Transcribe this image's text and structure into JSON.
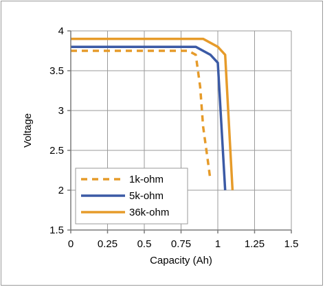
{
  "chart_data": {
    "type": "line",
    "xlabel": "Capacity (Ah)",
    "ylabel": "Voltage",
    "xlim": [
      0,
      1.5
    ],
    "ylim": [
      1.5,
      4
    ],
    "xticks": [
      0,
      0.25,
      0.5,
      0.75,
      1,
      1.25,
      1.5
    ],
    "xtick_labels": [
      "0",
      "0.25",
      "0.5",
      "0.75",
      "1",
      "1.25",
      "1.5"
    ],
    "yticks": [
      1.5,
      2,
      2.5,
      3,
      3.5,
      4
    ],
    "ytick_labels": [
      "1.5",
      "2",
      "2.5",
      "3",
      "3.5",
      "4"
    ],
    "grid": true,
    "legend_position": "bottom-left",
    "series": [
      {
        "name": "1k-ohm",
        "color": "#e69b2a",
        "style": "dashed",
        "points": [
          [
            0,
            3.75
          ],
          [
            0.8,
            3.75
          ],
          [
            0.85,
            3.7
          ],
          [
            0.88,
            3.3
          ],
          [
            0.9,
            2.8
          ],
          [
            0.93,
            2.4
          ],
          [
            0.95,
            2.12
          ]
        ]
      },
      {
        "name": "5k-ohm",
        "color": "#3b5aa5",
        "style": "solid",
        "points": [
          [
            0,
            3.8
          ],
          [
            0.85,
            3.8
          ],
          [
            0.95,
            3.7
          ],
          [
            1.0,
            3.6
          ],
          [
            1.05,
            2.0
          ]
        ]
      },
      {
        "name": "36k-ohm",
        "color": "#e69b2a",
        "style": "solid",
        "points": [
          [
            0,
            3.9
          ],
          [
            0.9,
            3.9
          ],
          [
            1.0,
            3.8
          ],
          [
            1.05,
            3.7
          ],
          [
            1.1,
            2.0
          ]
        ]
      }
    ]
  }
}
